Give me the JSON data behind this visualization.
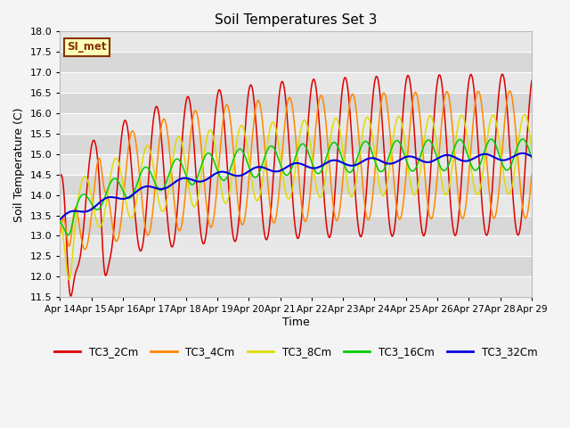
{
  "title": "Soil Temperatures Set 3",
  "xlabel": "Time",
  "ylabel": "Soil Temperature (C)",
  "ylim": [
    11.5,
    18.0
  ],
  "yticks": [
    11.5,
    12.0,
    12.5,
    13.0,
    13.5,
    14.0,
    14.5,
    15.0,
    15.5,
    16.0,
    16.5,
    17.0,
    17.5,
    18.0
  ],
  "x_tick_labels": [
    "Apr 14",
    "Apr 15",
    "Apr 16",
    "Apr 17",
    "Apr 18",
    "Apr 19",
    "Apr 20",
    "Apr 21",
    "Apr 22",
    "Apr 23",
    "Apr 24",
    "Apr 25",
    "Apr 26",
    "Apr 27",
    "Apr 28",
    "Apr 29"
  ],
  "line_colors": {
    "TC3_2Cm": "#dd0000",
    "TC3_4Cm": "#ff8800",
    "TC3_8Cm": "#dddd00",
    "TC3_16Cm": "#00cc00",
    "TC3_32Cm": "#0000dd"
  },
  "band_colors": [
    "#e8e8e8",
    "#d8d8d8"
  ],
  "fig_bg": "#f4f4f4",
  "si_met_label": "SI_met",
  "si_met_bg": "#ffffbb",
  "si_met_border": "#883300"
}
